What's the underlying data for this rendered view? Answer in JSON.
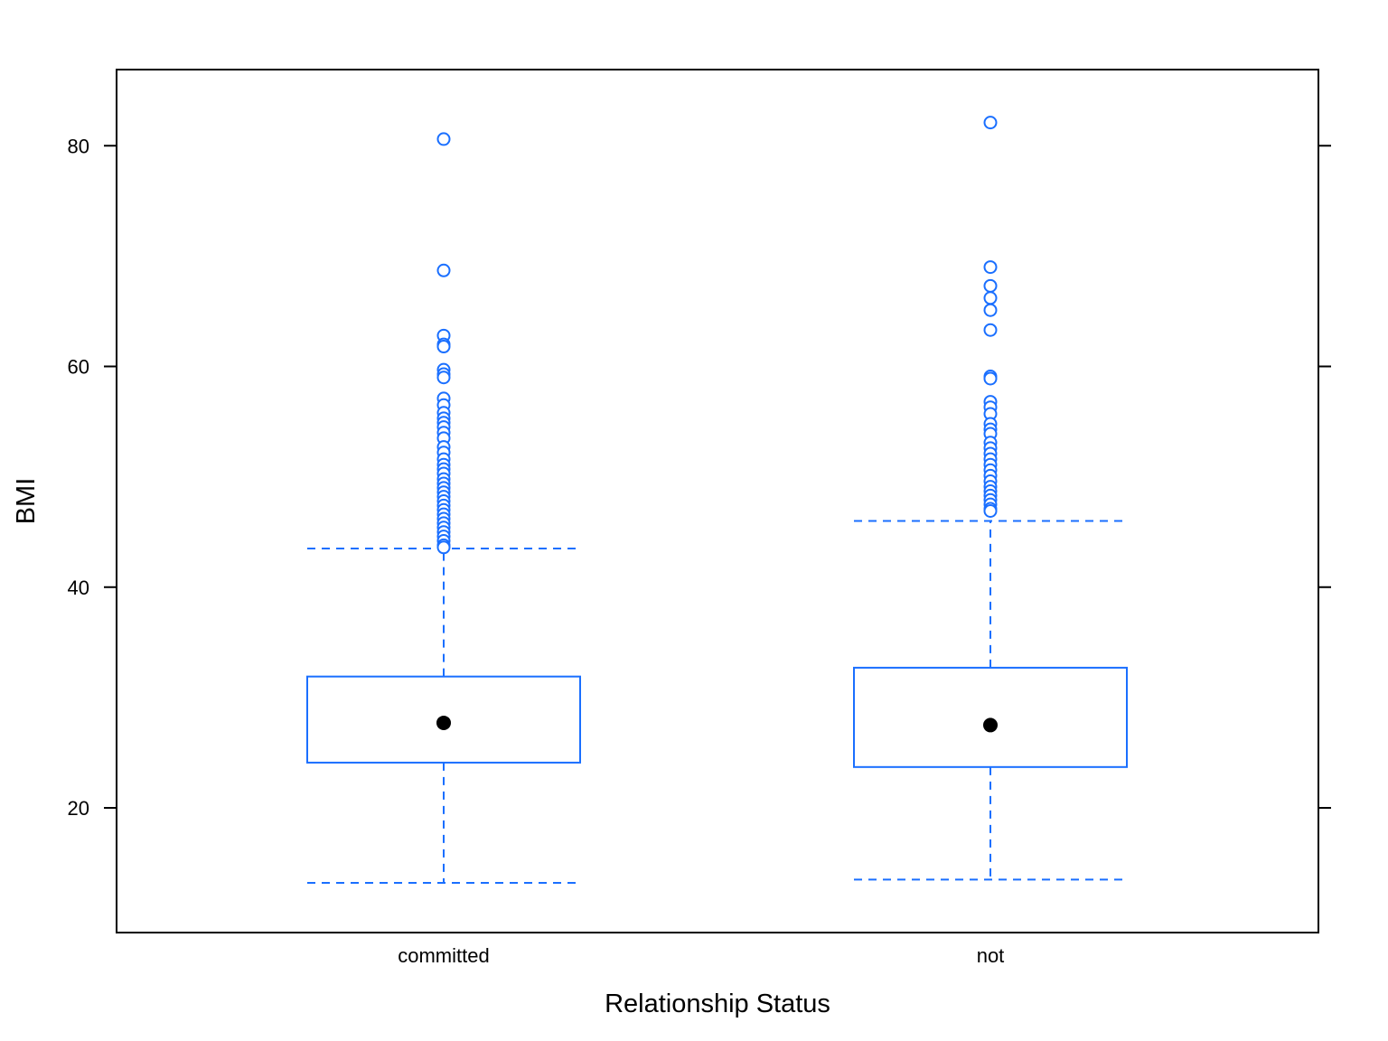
{
  "chart_data": {
    "type": "boxplot",
    "xlabel": "Relationship Status",
    "ylabel": "BMI",
    "ylim": [
      8.7,
      86.9
    ],
    "yticks": [
      20,
      40,
      60,
      80
    ],
    "categories": [
      "committed",
      "not"
    ],
    "colors": {
      "box": "#1a6fff",
      "median": "#000000",
      "frame": "#000000"
    },
    "boxes": [
      {
        "category": "committed",
        "whisker_low": 13.2,
        "q1": 24.1,
        "median": 27.7,
        "q3": 31.9,
        "whisker_high": 43.5,
        "outliers": [
          80.6,
          68.7,
          62.8,
          62.0,
          61.8,
          59.7,
          59.3,
          59.0,
          57.1,
          56.5,
          55.8,
          55.3,
          54.9,
          54.5,
          54.0,
          53.5,
          52.7,
          52.2,
          51.6,
          51.1,
          50.7,
          50.3,
          49.8,
          49.4,
          49.0,
          48.6,
          48.2,
          47.8,
          47.4,
          47.0,
          46.6,
          46.2,
          45.8,
          45.4,
          45.0,
          44.6,
          44.2,
          43.8,
          43.6
        ]
      },
      {
        "category": "not",
        "whisker_low": 13.5,
        "q1": 23.7,
        "median": 27.5,
        "q3": 32.7,
        "whisker_high": 46.0,
        "outliers": [
          82.1,
          69.0,
          67.3,
          66.2,
          65.1,
          63.3,
          59.1,
          58.9,
          56.8,
          56.3,
          55.7,
          54.8,
          54.3,
          53.9,
          53.1,
          52.6,
          52.1,
          51.6,
          51.1,
          50.6,
          50.1,
          49.6,
          49.1,
          48.7,
          48.3,
          47.9,
          47.5,
          47.1,
          46.9
        ]
      }
    ]
  }
}
